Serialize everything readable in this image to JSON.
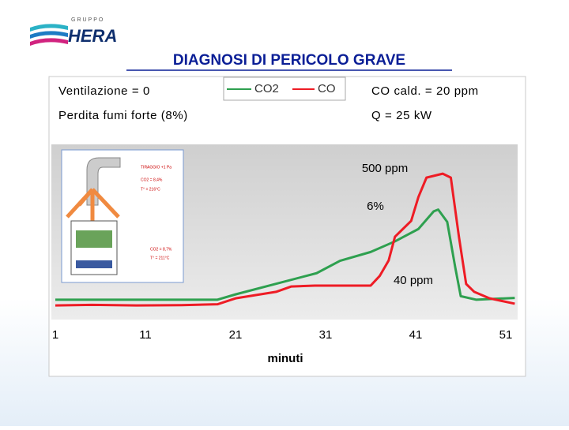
{
  "logo": {
    "group": "GRUPPO",
    "name": "HERA"
  },
  "slide_title": "DIAGNOSI DI PERICOLO GRAVE",
  "params": [
    "Ventilazione = 0",
    "Perdita fumi forte (8%)",
    "CO cald. = 20 ppm",
    "Q = 25 kW"
  ],
  "inset": {
    "labels": [
      "TIRAGGIO +1 Pa",
      "CO2 = 8,4%",
      "T° = 216°C",
      "CO2 = 8,7%",
      "T° = 211°C"
    ]
  },
  "chart_data": {
    "type": "line",
    "x_label": "minuti",
    "xlim": [
      1,
      51
    ],
    "xticks": [
      1,
      11,
      21,
      31,
      41,
      51
    ],
    "ylim": [
      0,
      600
    ],
    "y2lim": [
      0,
      9.6
    ],
    "annotations": [
      "500 ppm",
      "6%",
      "40 ppm"
    ],
    "series": [
      {
        "name": "CO2",
        "color": "#2ea04f",
        "axis": "y2",
        "x": [
          1,
          10,
          19,
          21,
          25.5,
          30,
          32.6,
          36,
          38.7,
          41.3,
          43,
          43.5,
          44.5,
          45.4,
          46,
          47.7,
          52
        ],
        "values": [
          0.9,
          0.9,
          0.9,
          1.2,
          1.8,
          2.4,
          3.1,
          3.6,
          4.2,
          4.9,
          5.9,
          6,
          5.3,
          2.7,
          1.1,
          0.9,
          1.0
        ]
      },
      {
        "name": "CO",
        "color": "#ee1c25",
        "x": [
          1,
          5,
          10,
          15,
          19,
          21,
          25.5,
          27.2,
          29.8,
          33,
          36,
          37,
          38,
          38.7,
          40.5,
          41.3,
          42.2,
          44,
          44.9,
          45.8,
          46.6,
          47.5,
          49.2,
          52
        ],
        "values": [
          36,
          38,
          36,
          37,
          40,
          61,
          84,
          103,
          106,
          106,
          106,
          140,
          195,
          279,
          335,
          419,
          488,
          502,
          488,
          279,
          112,
          84,
          61,
          42
        ]
      }
    ]
  }
}
